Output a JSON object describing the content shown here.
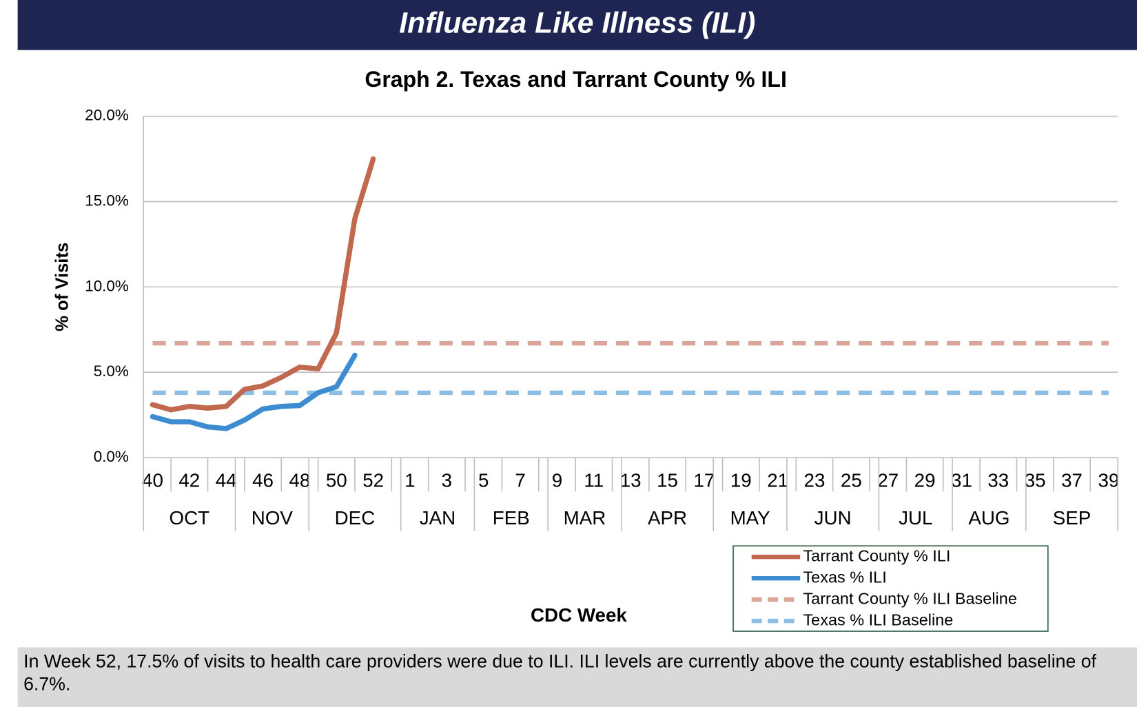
{
  "header": {
    "title": "Influenza Like Illness (ILI)"
  },
  "chart_data": {
    "type": "line",
    "title": "Graph 2. Texas and Tarrant County % ILI",
    "ylabel": "% of Visits",
    "xlabel": "CDC Week",
    "categories": [
      "40",
      null,
      "42",
      null,
      "44",
      null,
      "46",
      null,
      "48",
      null,
      "50",
      null,
      "52",
      null,
      "1",
      null,
      "3",
      null,
      "5",
      null,
      "7",
      null,
      "9",
      null,
      "11",
      null,
      "13",
      null,
      "15",
      null,
      "17",
      null,
      "19",
      null,
      "21",
      null,
      "23",
      null,
      "25",
      null,
      "27",
      null,
      "29",
      null,
      "31",
      null,
      "33",
      null,
      "35",
      null,
      "37",
      null,
      "39"
    ],
    "month_groups": [
      {
        "label": "OCT",
        "weeks": 5
      },
      {
        "label": "NOV",
        "weeks": 4
      },
      {
        "label": "DEC",
        "weeks": 5
      },
      {
        "label": "JAN",
        "weeks": 4
      },
      {
        "label": "FEB",
        "weeks": 4
      },
      {
        "label": "MAR",
        "weeks": 4
      },
      {
        "label": "APR",
        "weeks": 5
      },
      {
        "label": "MAY",
        "weeks": 4
      },
      {
        "label": "JUN",
        "weeks": 5
      },
      {
        "label": "JUL",
        "weeks": 4
      },
      {
        "label": "AUG",
        "weeks": 4
      },
      {
        "label": "SEP",
        "weeks": 5
      }
    ],
    "ylim": [
      0,
      20
    ],
    "yticks": [
      {
        "value": 0,
        "label": "0.0%"
      },
      {
        "value": 5,
        "label": "5.0%"
      },
      {
        "value": 10,
        "label": "10.0%"
      },
      {
        "value": 15,
        "label": "15.0%"
      },
      {
        "value": 20,
        "label": "20.0%"
      }
    ],
    "grid": true,
    "series": [
      {
        "name": "Tarrant County % ILI",
        "color": "#c0694e",
        "dashed": false,
        "values": [
          3.1,
          2.8,
          3.0,
          2.9,
          3.0,
          4.0,
          4.2,
          4.7,
          5.3,
          5.2,
          7.3,
          14.0,
          17.5,
          null,
          null,
          null,
          null,
          null,
          null,
          null,
          null,
          null,
          null,
          null,
          null,
          null,
          null,
          null,
          null,
          null,
          null,
          null,
          null,
          null,
          null,
          null,
          null,
          null,
          null,
          null,
          null,
          null,
          null,
          null,
          null,
          null,
          null,
          null,
          null,
          null,
          null,
          null,
          null
        ]
      },
      {
        "name": "Texas % ILI",
        "color": "#3d8bd0",
        "dashed": false,
        "values": [
          2.4,
          2.1,
          2.1,
          1.8,
          1.7,
          2.2,
          2.85,
          3.0,
          3.05,
          3.8,
          4.15,
          6.0,
          null,
          null,
          null,
          null,
          null,
          null,
          null,
          null,
          null,
          null,
          null,
          null,
          null,
          null,
          null,
          null,
          null,
          null,
          null,
          null,
          null,
          null,
          null,
          null,
          null,
          null,
          null,
          null,
          null,
          null,
          null,
          null,
          null,
          null,
          null,
          null,
          null,
          null,
          null,
          null,
          null
        ]
      },
      {
        "name": "Tarrant County % ILI Baseline",
        "color": "#dba69a",
        "dashed": true,
        "values": [
          6.7,
          6.7,
          6.7,
          6.7,
          6.7,
          6.7,
          6.7,
          6.7,
          6.7,
          6.7,
          6.7,
          6.7,
          6.7,
          6.7,
          6.7,
          6.7,
          6.7,
          6.7,
          6.7,
          6.7,
          6.7,
          6.7,
          6.7,
          6.7,
          6.7,
          6.7,
          6.7,
          6.7,
          6.7,
          6.7,
          6.7,
          6.7,
          6.7,
          6.7,
          6.7,
          6.7,
          6.7,
          6.7,
          6.7,
          6.7,
          6.7,
          6.7,
          6.7,
          6.7,
          6.7,
          6.7,
          6.7,
          6.7,
          6.7,
          6.7,
          6.7,
          6.7,
          6.7
        ]
      },
      {
        "name": "Texas % ILI Baseline",
        "color": "#8dbfe6",
        "dashed": true,
        "values": [
          3.8,
          3.8,
          3.8,
          3.8,
          3.8,
          3.8,
          3.8,
          3.8,
          3.8,
          3.8,
          3.8,
          3.8,
          3.8,
          3.8,
          3.8,
          3.8,
          3.8,
          3.8,
          3.8,
          3.8,
          3.8,
          3.8,
          3.8,
          3.8,
          3.8,
          3.8,
          3.8,
          3.8,
          3.8,
          3.8,
          3.8,
          3.8,
          3.8,
          3.8,
          3.8,
          3.8,
          3.8,
          3.8,
          3.8,
          3.8,
          3.8,
          3.8,
          3.8,
          3.8,
          3.8,
          3.8,
          3.8,
          3.8,
          3.8,
          3.8,
          3.8,
          3.8,
          3.8
        ]
      }
    ]
  },
  "footer": {
    "note": "In Week 52, 17.5% of visits to health care providers were due to ILI. ILI levels are currently above the county established baseline of 6.7%."
  }
}
